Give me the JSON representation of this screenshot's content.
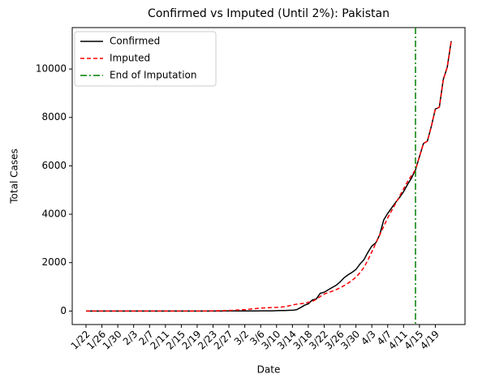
{
  "chart_data": {
    "type": "line",
    "title": "Confirmed vs Imputed (Until 2%): Pakistan",
    "x_label": "Date",
    "y_label": "Total Cases",
    "categories": [
      "1/22",
      "1/23",
      "1/24",
      "1/25",
      "1/26",
      "1/27",
      "1/28",
      "1/29",
      "1/30",
      "1/31",
      "2/1",
      "2/2",
      "2/3",
      "2/4",
      "2/5",
      "2/6",
      "2/7",
      "2/8",
      "2/9",
      "2/10",
      "2/11",
      "2/12",
      "2/13",
      "2/14",
      "2/15",
      "2/16",
      "2/17",
      "2/18",
      "2/19",
      "2/20",
      "2/21",
      "2/22",
      "2/23",
      "2/24",
      "2/25",
      "2/26",
      "2/27",
      "2/28",
      "2/29",
      "3/1",
      "3/2",
      "3/3",
      "3/4",
      "3/5",
      "3/6",
      "3/7",
      "3/8",
      "3/9",
      "3/10",
      "3/11",
      "3/12",
      "3/13",
      "3/14",
      "3/15",
      "3/16",
      "3/17",
      "3/18",
      "3/19",
      "3/20",
      "3/21",
      "3/22",
      "3/23",
      "3/24",
      "3/25",
      "3/26",
      "3/27",
      "3/28",
      "3/29",
      "3/30",
      "3/31",
      "4/1",
      "4/2",
      "4/3",
      "4/4",
      "4/5",
      "4/6",
      "4/7",
      "4/8",
      "4/9",
      "4/10",
      "4/11",
      "4/12",
      "4/13",
      "4/14",
      "4/15",
      "4/16",
      "4/17",
      "4/18",
      "4/19",
      "4/20",
      "4/21",
      "4/22",
      "4/23"
    ],
    "xticks": [
      "1/22",
      "1/26",
      "1/30",
      "2/3",
      "2/7",
      "2/11",
      "2/15",
      "2/19",
      "2/23",
      "2/27",
      "3/2",
      "3/6",
      "3/10",
      "3/14",
      "3/18",
      "3/22",
      "3/26",
      "3/30",
      "4/3",
      "4/7",
      "4/11",
      "4/15",
      "4/19"
    ],
    "series": [
      {
        "name": "Confirmed",
        "color": "#000000",
        "linestyle": "solid",
        "values": [
          0,
          0,
          0,
          0,
          0,
          0,
          0,
          0,
          0,
          0,
          0,
          0,
          0,
          0,
          0,
          0,
          0,
          0,
          0,
          0,
          0,
          0,
          0,
          0,
          0,
          0,
          0,
          0,
          0,
          0,
          0,
          0,
          0,
          0,
          0,
          2,
          2,
          2,
          4,
          4,
          4,
          5,
          5,
          5,
          6,
          6,
          6,
          6,
          16,
          19,
          20,
          28,
          31,
          53,
          136,
          236,
          299,
          454,
          501,
          730,
          776,
          875,
          972,
          1063,
          1201,
          1373,
          1495,
          1597,
          1717,
          1938,
          2118,
          2421,
          2686,
          2818,
          3157,
          3766,
          4035,
          4263,
          4489,
          4695,
          4934,
          5230,
          5496,
          5837,
          6383,
          6919,
          7025,
          7638,
          8348,
          8418,
          9565,
          10076,
          11155
        ]
      },
      {
        "name": "Imputed",
        "color": "#ff0000",
        "linestyle": "dashed",
        "values": [
          0,
          0,
          0,
          0,
          0,
          0,
          0,
          0,
          0,
          0,
          0,
          0,
          0,
          0,
          0,
          0,
          0,
          0,
          0,
          0,
          0,
          0,
          0,
          0,
          0,
          0,
          0,
          0,
          0,
          2,
          4,
          6,
          8,
          10,
          15,
          20,
          25,
          30,
          40,
          50,
          60,
          75,
          90,
          105,
          120,
          130,
          138,
          145,
          150,
          160,
          180,
          210,
          250,
          280,
          300,
          320,
          360,
          400,
          480,
          600,
          700,
          760,
          820,
          880,
          960,
          1050,
          1150,
          1260,
          1400,
          1580,
          1800,
          2100,
          2450,
          2800,
          3150,
          3500,
          3850,
          4150,
          4450,
          4750,
          5050,
          5350,
          5600,
          5837,
          6383,
          6919,
          7025,
          7638,
          8348,
          8418,
          9565,
          10076,
          11155
        ]
      }
    ],
    "vline": {
      "name": "End of Imputation",
      "x": "4/14",
      "color": "#008000",
      "linestyle": "dashdot"
    },
    "ylim": [
      -558,
      11713
    ],
    "yticks": [
      0,
      2000,
      4000,
      6000,
      8000,
      10000
    ],
    "legend": "upper left"
  }
}
